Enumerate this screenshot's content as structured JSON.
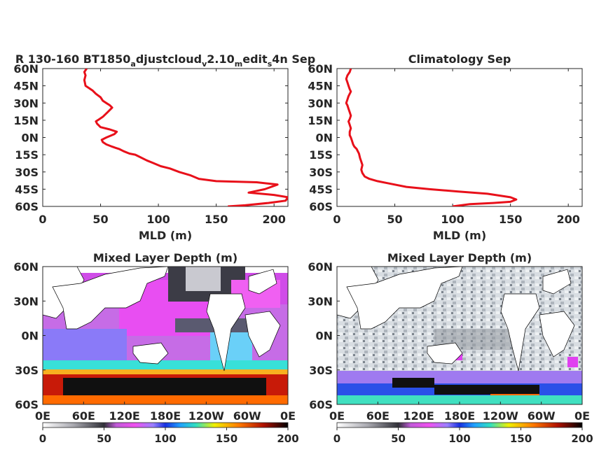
{
  "chart_data": [
    {
      "type": "line",
      "title_main": "R 130-160 BT1850",
      "title_segments": [
        {
          "text": "a",
          "sub": true
        },
        {
          "text": "djustcloud",
          "sub": false
        },
        {
          "text": "v",
          "sub": true
        },
        {
          "text": "2.10",
          "sub": false
        },
        {
          "text": "m",
          "sub": true
        },
        {
          "text": "edit",
          "sub": false
        },
        {
          "text": "s",
          "sub": true
        },
        {
          "text": "4n Sep",
          "sub": false
        }
      ],
      "xlabel": "MLD (m)",
      "xlim": [
        0,
        212
      ],
      "xticks": [
        0,
        50,
        100,
        150,
        200
      ],
      "ylim": [
        -60,
        60
      ],
      "yticks": [
        60,
        45,
        30,
        15,
        0,
        -15,
        -30,
        -45,
        -60
      ],
      "ytick_labels": [
        "60N",
        "45N",
        "30N",
        "15N",
        "0N",
        "15S",
        "30S",
        "45S",
        "60S"
      ],
      "line_color": "#e8101a",
      "series": [
        {
          "x": [
            160,
            175,
            195,
            210,
            212,
            200,
            178,
            192,
            203,
            185,
            150,
            135,
            128,
            118,
            110,
            102,
            95,
            90,
            84,
            80,
            75,
            70,
            66,
            63,
            60,
            55,
            52,
            51,
            55,
            62,
            64,
            58,
            50,
            47,
            46,
            49,
            52,
            56,
            60,
            58,
            55,
            52,
            50,
            46,
            43,
            40,
            37,
            36,
            37,
            36,
            38
          ],
          "y": [
            -60,
            -59,
            -57,
            -55,
            -52,
            -50,
            -48,
            -45,
            -41,
            -39,
            -38,
            -36,
            -33,
            -30,
            -27,
            -25,
            -22,
            -20,
            -17,
            -15,
            -14,
            -12,
            -10,
            -9,
            -8,
            -6,
            -4,
            -2,
            0,
            3,
            5,
            7,
            9,
            12,
            14,
            16,
            18,
            22,
            26,
            28,
            30,
            32,
            35,
            38,
            41,
            43,
            45,
            50,
            54,
            57,
            60
          ]
        }
      ]
    },
    {
      "type": "line",
      "title": "Climatology Sep",
      "xlabel": "MLD (m)",
      "xlim": [
        0,
        212
      ],
      "xticks": [
        0,
        50,
        100,
        150,
        200
      ],
      "ylim": [
        -60,
        60
      ],
      "yticks": [
        60,
        45,
        30,
        15,
        0,
        -15,
        -30,
        -45,
        -60
      ],
      "ytick_labels": [
        "60N",
        "45N",
        "30N",
        "15N",
        "0N",
        "15S",
        "30S",
        "45S",
        "60S"
      ],
      "line_color": "#e8101a",
      "series": [
        {
          "x": [
            100,
            115,
            135,
            150,
            155,
            150,
            130,
            105,
            80,
            60,
            45,
            35,
            28,
            24,
            22,
            21,
            22,
            21,
            20,
            19,
            18,
            17,
            15,
            14,
            13,
            12,
            11,
            11,
            12,
            11,
            10,
            11,
            12,
            11,
            10,
            9,
            8,
            9,
            10,
            11,
            12,
            11,
            10,
            9,
            8,
            9,
            11,
            12
          ],
          "y": [
            -60,
            -58,
            -57,
            -56,
            -54,
            -52,
            -49,
            -47,
            -45,
            -43,
            -40,
            -38,
            -36,
            -34,
            -31,
            -28,
            -24,
            -21,
            -18,
            -14,
            -12,
            -10,
            -8,
            -6,
            -3,
            0,
            2,
            5,
            8,
            11,
            14,
            16,
            19,
            22,
            25,
            28,
            30,
            33,
            36,
            38,
            40,
            42,
            45,
            48,
            51,
            54,
            57,
            60
          ]
        }
      ]
    },
    {
      "type": "heatmap",
      "title": "Mixed Layer Depth (m)",
      "xtick_labels": [
        "0E",
        "60E",
        "120E",
        "180E",
        "120W",
        "60W",
        "0E"
      ],
      "ytick_labels": [
        "60N",
        "30N",
        "0N",
        "30S",
        "60S"
      ],
      "colorbar_ticks": [
        0,
        50,
        100,
        150,
        200
      ],
      "colorbar_range": [
        0,
        200
      ]
    },
    {
      "type": "heatmap",
      "title": "Mixed Layer Depth (m)",
      "xtick_labels": [
        "0E",
        "60E",
        "120E",
        "180E",
        "120W",
        "60W",
        "0E"
      ],
      "ytick_labels": [
        "60N",
        "30N",
        "0N",
        "30S",
        "60S"
      ],
      "colorbar_ticks": [
        0,
        50,
        100,
        150,
        200
      ],
      "colorbar_range": [
        0,
        200
      ]
    }
  ]
}
